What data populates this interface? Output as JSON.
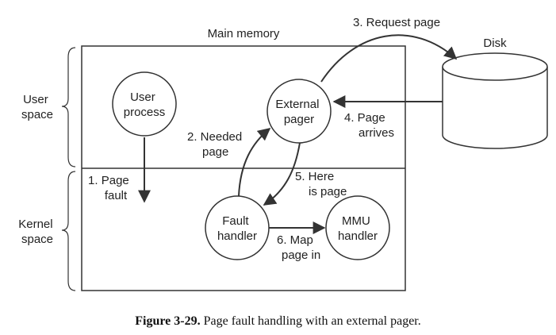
{
  "regions": {
    "main_memory": "Main memory",
    "user_space": [
      "User",
      "space"
    ],
    "kernel_space": [
      "Kernel",
      "space"
    ]
  },
  "nodes": {
    "user_process": [
      "User",
      "process"
    ],
    "external_pager": [
      "External",
      "pager"
    ],
    "fault_handler": [
      "Fault",
      "handler"
    ],
    "mmu_handler": [
      "MMU",
      "handler"
    ],
    "disk": "Disk"
  },
  "steps": {
    "s1": [
      "1. Page",
      "fault"
    ],
    "s2": [
      "2. Needed",
      "page"
    ],
    "s3": "3. Request page",
    "s4": [
      "4. Page",
      "arrives"
    ],
    "s5": [
      "5. Here",
      "is page"
    ],
    "s6": [
      "6. Map",
      "page in"
    ]
  },
  "caption": {
    "label": "Figure 3-29.",
    "text": "Page fault handling with an external pager."
  }
}
